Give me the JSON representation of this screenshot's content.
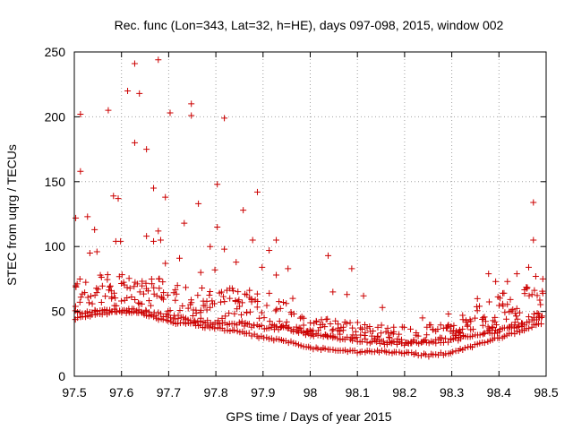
{
  "chart_data": {
    "type": "scatter",
    "title": "Rec. func (Lon=343, Lat=32, h=HE), days 097-098, 2015, window 002",
    "xlabel": "GPS time / Days of year 2015",
    "ylabel": "STEC from uqrg / TECUs",
    "xlim": [
      97.5,
      98.5
    ],
    "ylim": [
      0,
      250
    ],
    "xticks": [
      "97.5",
      "97.6",
      "97.7",
      "97.8",
      "97.9",
      "98",
      "98.1",
      "98.2",
      "98.3",
      "98.4",
      "98.5"
    ],
    "yticks": [
      "0",
      "50",
      "100",
      "150",
      "200",
      "250"
    ],
    "grid": true,
    "marker": "plus",
    "colors": {
      "points": "#cc0000",
      "grid": "#a0a0a0",
      "axes": "#000000"
    },
    "bands": [
      {
        "name": "",
        "x": [
          97.5,
          97.55,
          97.6,
          97.65,
          97.7,
          97.75,
          97.8,
          97.85,
          97.9,
          97.95,
          98.0,
          98.05,
          98.1,
          98.15,
          98.2,
          98.25,
          98.3,
          98.35,
          98.4,
          98.45,
          98.48
        ],
        "values": [
          49,
          50,
          51,
          50,
          46,
          43,
          40,
          40,
          38,
          37,
          32,
          30,
          28,
          26,
          25,
          26,
          28,
          32,
          35,
          40,
          45
        ]
      },
      {
        "name": "",
        "x": [
          97.5,
          97.55,
          97.6,
          97.65,
          97.7,
          97.75,
          97.8,
          97.85,
          97.9,
          97.95,
          98.0,
          98.05,
          98.1,
          98.15,
          98.2,
          98.25,
          98.3,
          98.35,
          98.4,
          98.45,
          98.48
        ],
        "values": [
          44,
          48,
          50,
          48,
          42,
          40,
          37,
          34,
          30,
          27,
          22,
          20,
          19,
          19,
          18,
          16,
          18,
          24,
          30,
          35,
          40
        ]
      }
    ],
    "outliers": [
      [
        97.503,
        122
      ],
      [
        97.513,
        202
      ],
      [
        97.513,
        158
      ],
      [
        97.528,
        123
      ],
      [
        97.533,
        95
      ],
      [
        97.543,
        113
      ],
      [
        97.548,
        96
      ],
      [
        97.572,
        205
      ],
      [
        97.583,
        139
      ],
      [
        97.588,
        104
      ],
      [
        97.593,
        137
      ],
      [
        97.598,
        104
      ],
      [
        97.613,
        220
      ],
      [
        97.628,
        241
      ],
      [
        97.628,
        180
      ],
      [
        97.638,
        218
      ],
      [
        97.653,
        175
      ],
      [
        97.653,
        108
      ],
      [
        97.668,
        145
      ],
      [
        97.668,
        104
      ],
      [
        97.678,
        112
      ],
      [
        97.678,
        244
      ],
      [
        97.683,
        105
      ],
      [
        97.693,
        138
      ],
      [
        97.693,
        87
      ],
      [
        97.703,
        203
      ],
      [
        97.723,
        91
      ],
      [
        97.733,
        118
      ],
      [
        97.748,
        210
      ],
      [
        97.748,
        201
      ],
      [
        97.763,
        133
      ],
      [
        97.768,
        80
      ],
      [
        97.788,
        100
      ],
      [
        97.798,
        82
      ],
      [
        97.803,
        148
      ],
      [
        97.803,
        115
      ],
      [
        97.818,
        199
      ],
      [
        97.818,
        98
      ],
      [
        97.843,
        88
      ],
      [
        97.858,
        128
      ],
      [
        97.878,
        105
      ],
      [
        97.888,
        142
      ],
      [
        97.898,
        84
      ],
      [
        97.913,
        97
      ],
      [
        97.928,
        105
      ],
      [
        97.928,
        78
      ],
      [
        97.943,
        57
      ],
      [
        97.953,
        83
      ],
      [
        97.963,
        60
      ],
      [
        98.038,
        93
      ],
      [
        98.048,
        65
      ],
      [
        98.078,
        63
      ],
      [
        98.088,
        83
      ],
      [
        98.113,
        62
      ],
      [
        98.153,
        53
      ],
      [
        98.238,
        45
      ],
      [
        98.293,
        48
      ],
      [
        98.323,
        47
      ],
      [
        98.378,
        79
      ],
      [
        98.393,
        73
      ],
      [
        98.408,
        64
      ],
      [
        98.418,
        73
      ],
      [
        98.438,
        79
      ],
      [
        98.463,
        84
      ],
      [
        98.473,
        134
      ],
      [
        98.473,
        105
      ],
      [
        98.478,
        77
      ],
      [
        98.493,
        75
      ],
      [
        98.493,
        64
      ]
    ]
  }
}
